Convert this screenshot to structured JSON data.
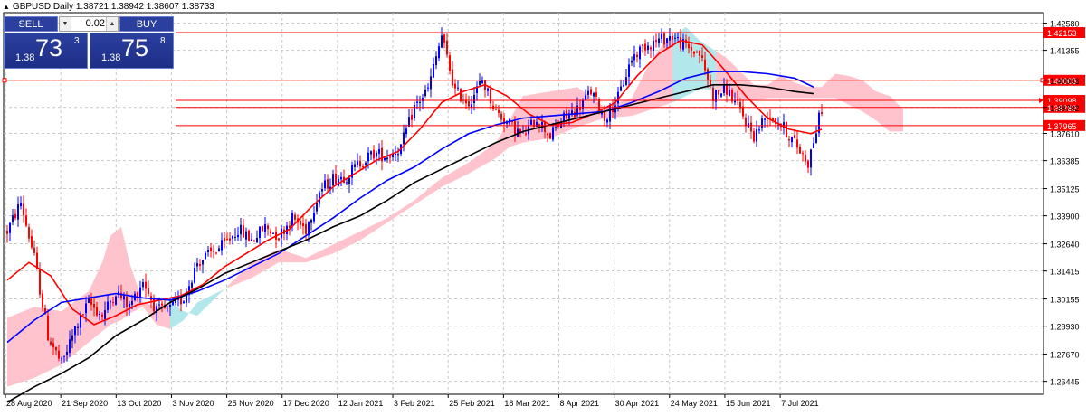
{
  "header": {
    "symbol_line": "GBPUSD,Daily  1.38721 1.38942 1.38607 1.38733"
  },
  "trade_panel": {
    "sell_label": "SELL",
    "buy_label": "BUY",
    "lot_value": "0.02",
    "sell_prefix": "1.38",
    "sell_big": "73",
    "sell_sup": "3",
    "buy_prefix": "1.38",
    "buy_big": "75",
    "buy_sup": "8"
  },
  "price_labels": [
    "1.42153",
    "1.40003",
    "1.39098",
    "1.38782",
    "1.37965"
  ],
  "chart_data": {
    "type": "candlestick",
    "title": "GBPUSD,Daily",
    "ohlc_header": "1.38721 1.38942 1.38607 1.38733",
    "ylim": [
      1.2586,
      1.4305
    ],
    "y_ticks": [
      "1.42580",
      "1.41355",
      "1.40003",
      "1.38782",
      "1.37610",
      "1.36385",
      "1.35125",
      "1.33900",
      "1.32640",
      "1.31415",
      "1.30155",
      "1.28930",
      "1.27670",
      "1.26445"
    ],
    "x_ticks": [
      "28 Aug 2020",
      "21 Sep 2020",
      "13 Oct 2020",
      "3 Nov 2020",
      "25 Nov 2020",
      "17 Dec 2020",
      "12 Jan 2021",
      "3 Feb 2021",
      "25 Feb 2021",
      "18 Mar 2021",
      "8 Apr 2021",
      "30 Apr 2021",
      "24 May 2021",
      "15 Jun 2021",
      "7 Jul 2021"
    ],
    "grid": true,
    "up_color": "#0000ff",
    "down_color": "#ff0000",
    "price_levels": [
      {
        "value": 1.42153,
        "color": "#ff0000"
      },
      {
        "value": 1.40003,
        "color": "#ff0000"
      },
      {
        "value": 1.39098,
        "color": "#ff0000"
      },
      {
        "value": 1.38782,
        "color": "#ff0000"
      },
      {
        "value": 1.37965,
        "color": "#ff0000"
      }
    ],
    "price_path": [
      [
        0,
        1.332
      ],
      [
        5,
        1.345
      ],
      [
        10,
        1.32
      ],
      [
        15,
        1.285
      ],
      [
        20,
        1.272
      ],
      [
        25,
        1.288
      ],
      [
        30,
        1.3
      ],
      [
        35,
        1.294
      ],
      [
        40,
        1.305
      ],
      [
        45,
        1.298
      ],
      [
        50,
        1.31
      ],
      [
        55,
        1.296
      ],
      [
        60,
        1.297
      ],
      [
        65,
        1.302
      ],
      [
        70,
        1.318
      ],
      [
        75,
        1.322
      ],
      [
        80,
        1.326
      ],
      [
        85,
        1.333
      ],
      [
        90,
        1.328
      ],
      [
        95,
        1.334
      ],
      [
        100,
        1.33
      ],
      [
        105,
        1.338
      ],
      [
        110,
        1.333
      ],
      [
        115,
        1.35
      ],
      [
        120,
        1.356
      ],
      [
        125,
        1.357
      ],
      [
        130,
        1.363
      ],
      [
        135,
        1.367
      ],
      [
        140,
        1.366
      ],
      [
        145,
        1.37
      ],
      [
        150,
        1.388
      ],
      [
        155,
        1.396
      ],
      [
        160,
        1.42
      ],
      [
        165,
        1.395
      ],
      [
        170,
        1.39
      ],
      [
        175,
        1.4
      ],
      [
        180,
        1.386
      ],
      [
        185,
        1.38
      ],
      [
        190,
        1.375
      ],
      [
        195,
        1.383
      ],
      [
        200,
        1.375
      ],
      [
        205,
        1.383
      ],
      [
        210,
        1.387
      ],
      [
        215,
        1.395
      ],
      [
        220,
        1.383
      ],
      [
        225,
        1.392
      ],
      [
        230,
        1.41
      ],
      [
        235,
        1.416
      ],
      [
        240,
        1.418
      ],
      [
        245,
        1.42
      ],
      [
        250,
        1.415
      ],
      [
        255,
        1.412
      ],
      [
        260,
        1.393
      ],
      [
        265,
        1.396
      ],
      [
        270,
        1.386
      ],
      [
        275,
        1.375
      ],
      [
        280,
        1.385
      ],
      [
        285,
        1.38
      ],
      [
        290,
        1.372
      ],
      [
        295,
        1.363
      ],
      [
        300,
        1.3875
      ]
    ],
    "series": [
      {
        "color": "#ff0000",
        "points": [
          [
            0,
            1.31
          ],
          [
            8,
            1.318
          ],
          [
            16,
            1.312
          ],
          [
            24,
            1.297
          ],
          [
            32,
            1.29
          ],
          [
            40,
            1.294
          ],
          [
            48,
            1.299
          ],
          [
            56,
            1.301
          ],
          [
            64,
            1.303
          ],
          [
            72,
            1.308
          ],
          [
            80,
            1.316
          ],
          [
            88,
            1.322
          ],
          [
            96,
            1.328
          ],
          [
            104,
            1.333
          ],
          [
            112,
            1.343
          ],
          [
            120,
            1.352
          ],
          [
            128,
            1.358
          ],
          [
            136,
            1.364
          ],
          [
            144,
            1.368
          ],
          [
            152,
            1.378
          ],
          [
            160,
            1.39
          ],
          [
            168,
            1.395
          ],
          [
            176,
            1.398
          ],
          [
            184,
            1.393
          ],
          [
            192,
            1.385
          ],
          [
            200,
            1.38
          ],
          [
            208,
            1.381
          ],
          [
            216,
            1.385
          ],
          [
            224,
            1.39
          ],
          [
            232,
            1.402
          ],
          [
            240,
            1.412
          ],
          [
            248,
            1.418
          ],
          [
            256,
            1.416
          ],
          [
            264,
            1.405
          ],
          [
            272,
            1.393
          ],
          [
            280,
            1.383
          ],
          [
            288,
            1.378
          ],
          [
            296,
            1.376
          ],
          [
            300,
            1.378
          ]
        ]
      },
      {
        "color": "#0000ff",
        "points": [
          [
            0,
            1.282
          ],
          [
            10,
            1.292
          ],
          [
            20,
            1.3
          ],
          [
            30,
            1.302
          ],
          [
            40,
            1.304
          ],
          [
            50,
            1.302
          ],
          [
            60,
            1.301
          ],
          [
            70,
            1.305
          ],
          [
            80,
            1.31
          ],
          [
            90,
            1.316
          ],
          [
            100,
            1.322
          ],
          [
            110,
            1.33
          ],
          [
            120,
            1.338
          ],
          [
            130,
            1.347
          ],
          [
            140,
            1.355
          ],
          [
            150,
            1.361
          ],
          [
            160,
            1.369
          ],
          [
            170,
            1.376
          ],
          [
            180,
            1.38
          ],
          [
            190,
            1.383
          ],
          [
            200,
            1.384
          ],
          [
            210,
            1.385
          ],
          [
            220,
            1.386
          ],
          [
            230,
            1.39
          ],
          [
            240,
            1.395
          ],
          [
            250,
            1.401
          ],
          [
            260,
            1.404
          ],
          [
            270,
            1.404
          ],
          [
            280,
            1.403
          ],
          [
            290,
            1.401
          ],
          [
            297,
            1.397
          ]
        ]
      },
      {
        "color": "#000000",
        "points": [
          [
            0,
            1.255
          ],
          [
            10,
            1.262
          ],
          [
            20,
            1.268
          ],
          [
            30,
            1.275
          ],
          [
            40,
            1.285
          ],
          [
            50,
            1.292
          ],
          [
            60,
            1.3
          ],
          [
            70,
            1.306
          ],
          [
            80,
            1.313
          ],
          [
            90,
            1.318
          ],
          [
            100,
            1.323
          ],
          [
            110,
            1.328
          ],
          [
            120,
            1.334
          ],
          [
            130,
            1.339
          ],
          [
            140,
            1.346
          ],
          [
            150,
            1.354
          ],
          [
            160,
            1.36
          ],
          [
            170,
            1.366
          ],
          [
            180,
            1.372
          ],
          [
            190,
            1.377
          ],
          [
            200,
            1.38
          ],
          [
            210,
            1.383
          ],
          [
            220,
            1.386
          ],
          [
            230,
            1.389
          ],
          [
            240,
            1.392
          ],
          [
            250,
            1.395
          ],
          [
            260,
            1.398
          ],
          [
            270,
            1.398
          ],
          [
            280,
            1.397
          ],
          [
            290,
            1.395
          ],
          [
            297,
            1.394
          ]
        ]
      }
    ],
    "cloud": {
      "upper": [
        [
          0,
          1.293
        ],
        [
          10,
          1.298
        ],
        [
          20,
          1.296
        ],
        [
          30,
          1.305
        ],
        [
          35,
          1.318
        ],
        [
          38,
          1.33
        ],
        [
          42,
          1.334
        ],
        [
          45,
          1.318
        ],
        [
          50,
          1.3
        ],
        [
          55,
          1.298
        ],
        [
          60,
          1.3
        ],
        [
          65,
          1.296
        ],
        [
          70,
          1.294
        ],
        [
          80,
          1.306
        ],
        [
          90,
          1.318
        ],
        [
          100,
          1.324
        ],
        [
          110,
          1.32
        ],
        [
          120,
          1.326
        ],
        [
          130,
          1.332
        ],
        [
          140,
          1.338
        ],
        [
          150,
          1.346
        ],
        [
          160,
          1.356
        ],
        [
          170,
          1.363
        ],
        [
          180,
          1.372
        ],
        [
          185,
          1.382
        ],
        [
          190,
          1.393
        ],
        [
          200,
          1.395
        ],
        [
          210,
          1.397
        ],
        [
          220,
          1.388
        ],
        [
          230,
          1.392
        ],
        [
          235,
          1.404
        ],
        [
          240,
          1.414
        ],
        [
          245,
          1.42
        ],
        [
          250,
          1.424
        ],
        [
          255,
          1.418
        ],
        [
          260,
          1.414
        ],
        [
          265,
          1.41
        ],
        [
          270,
          1.404
        ],
        [
          275,
          1.398
        ],
        [
          280,
          1.398
        ],
        [
          285,
          1.402
        ],
        [
          290,
          1.399
        ],
        [
          295,
          1.397
        ],
        [
          300,
          1.397
        ],
        [
          305,
          1.403
        ],
        [
          310,
          1.402
        ],
        [
          315,
          1.4
        ],
        [
          320,
          1.395
        ],
        [
          325,
          1.393
        ],
        [
          330,
          1.387
        ]
      ],
      "lower": [
        [
          0,
          1.262
        ],
        [
          10,
          1.266
        ],
        [
          20,
          1.272
        ],
        [
          30,
          1.282
        ],
        [
          35,
          1.287
        ],
        [
          38,
          1.29
        ],
        [
          42,
          1.292
        ],
        [
          45,
          1.295
        ],
        [
          50,
          1.298
        ],
        [
          55,
          1.29
        ],
        [
          60,
          1.288
        ],
        [
          65,
          1.292
        ],
        [
          70,
          1.3
        ],
        [
          80,
          1.306
        ],
        [
          90,
          1.311
        ],
        [
          100,
          1.318
        ],
        [
          110,
          1.318
        ],
        [
          120,
          1.322
        ],
        [
          130,
          1.328
        ],
        [
          140,
          1.336
        ],
        [
          150,
          1.344
        ],
        [
          160,
          1.352
        ],
        [
          170,
          1.358
        ],
        [
          180,
          1.365
        ],
        [
          185,
          1.37
        ],
        [
          190,
          1.372
        ],
        [
          200,
          1.374
        ],
        [
          210,
          1.379
        ],
        [
          220,
          1.383
        ],
        [
          230,
          1.384
        ],
        [
          235,
          1.386
        ],
        [
          240,
          1.388
        ],
        [
          245,
          1.39
        ],
        [
          250,
          1.393
        ],
        [
          255,
          1.396
        ],
        [
          260,
          1.396
        ],
        [
          265,
          1.394
        ],
        [
          270,
          1.391
        ],
        [
          275,
          1.391
        ],
        [
          280,
          1.392
        ],
        [
          285,
          1.392
        ],
        [
          290,
          1.392
        ],
        [
          295,
          1.392
        ],
        [
          300,
          1.392
        ],
        [
          305,
          1.392
        ],
        [
          310,
          1.389
        ],
        [
          315,
          1.386
        ],
        [
          320,
          1.382
        ],
        [
          325,
          1.377
        ],
        [
          330,
          1.377
        ]
      ]
    }
  }
}
